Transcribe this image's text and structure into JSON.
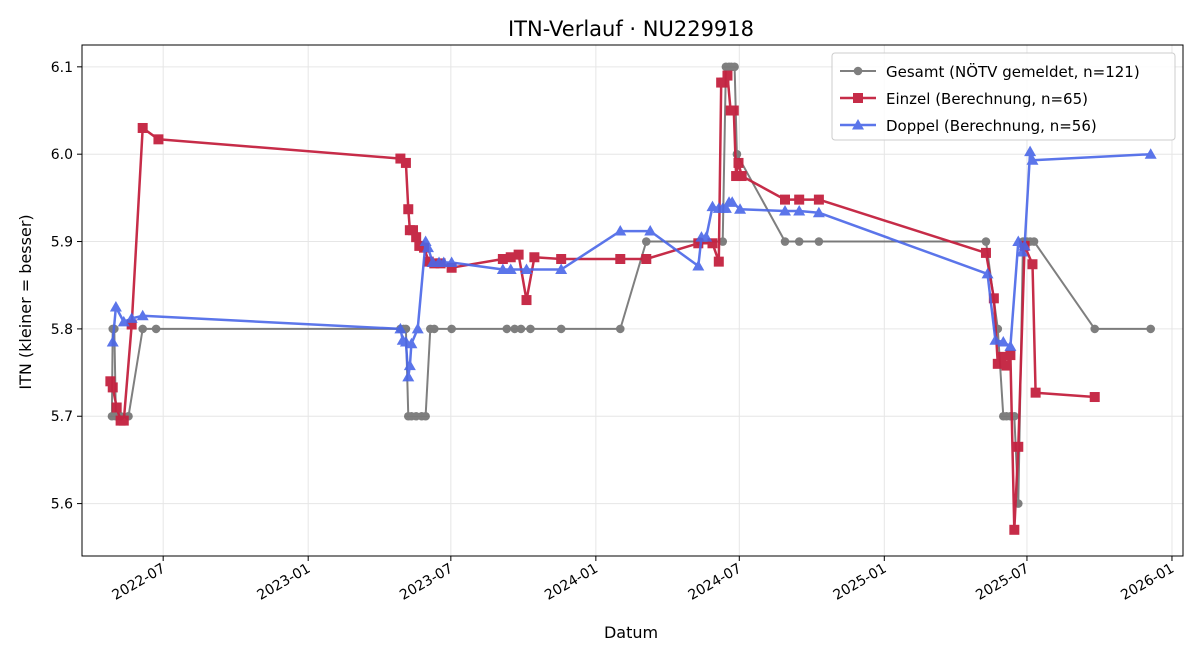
{
  "chart_data": {
    "type": "line",
    "title": "ITN-Verlauf · NU229918",
    "xlabel": "Datum",
    "ylabel": "ITN  (kleiner = besser)",
    "xlim": [
      "2022-03-20",
      "2026-01-15"
    ],
    "ylim": [
      5.54,
      6.125
    ],
    "x_ticks": [
      "2022-07",
      "2023-01",
      "2023-07",
      "2024-01",
      "2024-07",
      "2025-01",
      "2025-07",
      "2026-01"
    ],
    "y_ticks": [
      "5.6",
      "5.7",
      "5.8",
      "5.9",
      "6.0",
      "6.1"
    ],
    "grid": true,
    "legend_position": "top-right",
    "series": [
      {
        "name": "Gesamt (NÖTV gemeldet, n=121)",
        "color": "#555555",
        "marker": "circle",
        "x": [
          "2022-04-27",
          "2022-04-28",
          "2022-04-30",
          "2022-05-02",
          "2022-05-08",
          "2022-05-18",
          "2022-06-05",
          "2022-06-22",
          "2023-04-28",
          "2023-05-02",
          "2023-05-05",
          "2023-05-08",
          "2023-05-12",
          "2023-05-18",
          "2023-05-25",
          "2023-05-30",
          "2023-06-05",
          "2023-06-10",
          "2023-07-02",
          "2023-09-10",
          "2023-09-20",
          "2023-09-28",
          "2023-10-10",
          "2023-11-18",
          "2024-02-01",
          "2024-03-05",
          "2024-05-12",
          "2024-06-10",
          "2024-06-14",
          "2024-06-18",
          "2024-06-21",
          "2024-06-25",
          "2024-06-28",
          "2024-08-28",
          "2024-09-15",
          "2024-10-10",
          "2025-05-10",
          "2025-05-25",
          "2025-06-01",
          "2025-06-05",
          "2025-06-10",
          "2025-06-15",
          "2025-06-20",
          "2025-06-26",
          "2025-07-01",
          "2025-07-05",
          "2025-07-10",
          "2025-09-25",
          "2025-12-05"
        ],
        "values": [
          5.7,
          5.8,
          5.8,
          5.7,
          5.7,
          5.7,
          5.8,
          5.8,
          5.8,
          5.8,
          5.8,
          5.7,
          5.7,
          5.7,
          5.7,
          5.7,
          5.8,
          5.8,
          5.8,
          5.8,
          5.8,
          5.8,
          5.8,
          5.8,
          5.8,
          5.9,
          5.9,
          5.9,
          6.1,
          6.1,
          6.1,
          6.1,
          6.0,
          5.9,
          5.9,
          5.9,
          5.9,
          5.8,
          5.7,
          5.7,
          5.7,
          5.7,
          5.6,
          5.9,
          5.9,
          5.9,
          5.9,
          5.8,
          5.8
        ]
      },
      {
        "name": "Einzel (Berechnung, n=65)",
        "color": "#c4213f",
        "marker": "square",
        "x": [
          "2022-04-25",
          "2022-04-28",
          "2022-05-03",
          "2022-05-08",
          "2022-05-12",
          "2022-05-22",
          "2022-06-05",
          "2022-06-25",
          "2023-04-28",
          "2023-05-05",
          "2023-05-08",
          "2023-05-10",
          "2023-05-14",
          "2023-05-18",
          "2023-05-22",
          "2023-05-28",
          "2023-06-03",
          "2023-06-10",
          "2023-06-18",
          "2023-07-02",
          "2023-09-05",
          "2023-09-15",
          "2023-09-25",
          "2023-10-05",
          "2023-10-15",
          "2023-11-18",
          "2024-02-01",
          "2024-03-05",
          "2024-05-10",
          "2024-05-28",
          "2024-06-05",
          "2024-06-08",
          "2024-06-12",
          "2024-06-16",
          "2024-06-20",
          "2024-06-24",
          "2024-06-27",
          "2024-06-30",
          "2024-07-04",
          "2024-08-28",
          "2024-09-15",
          "2024-10-10",
          "2025-05-10",
          "2025-05-20",
          "2025-05-25",
          "2025-05-30",
          "2025-06-05",
          "2025-06-10",
          "2025-06-15",
          "2025-06-20",
          "2025-06-28",
          "2025-07-08",
          "2025-07-12",
          "2025-09-25"
        ],
        "values": [
          5.74,
          5.733,
          5.71,
          5.695,
          5.695,
          5.805,
          6.03,
          6.017,
          5.995,
          5.99,
          5.937,
          5.913,
          5.913,
          5.905,
          5.895,
          5.893,
          5.877,
          5.875,
          5.875,
          5.87,
          5.88,
          5.882,
          5.885,
          5.833,
          5.882,
          5.88,
          5.88,
          5.88,
          5.898,
          5.898,
          5.877,
          6.082,
          6.082,
          6.09,
          6.05,
          6.05,
          5.975,
          5.99,
          5.975,
          5.948,
          5.948,
          5.948,
          5.887,
          5.835,
          5.76,
          5.768,
          5.758,
          5.77,
          5.57,
          5.665,
          5.895,
          5.874,
          5.727,
          5.722
        ]
      },
      {
        "name": "Doppel (Berechnung, n=56)",
        "color": "#4a67e8",
        "marker": "triangle",
        "x": [
          "2022-04-28",
          "2022-05-02",
          "2022-05-12",
          "2022-05-22",
          "2022-06-05",
          "2023-04-28",
          "2023-05-01",
          "2023-05-05",
          "2023-05-08",
          "2023-05-10",
          "2023-05-12",
          "2023-05-20",
          "2023-05-30",
          "2023-06-02",
          "2023-06-08",
          "2023-06-16",
          "2023-06-22",
          "2023-07-02",
          "2023-09-05",
          "2023-09-15",
          "2023-10-05",
          "2023-11-18",
          "2024-02-01",
          "2024-03-10",
          "2024-05-10",
          "2024-05-14",
          "2024-05-20",
          "2024-05-28",
          "2024-06-05",
          "2024-06-10",
          "2024-06-14",
          "2024-06-18",
          "2024-06-22",
          "2024-07-02",
          "2024-08-28",
          "2024-09-15",
          "2024-10-10",
          "2025-05-12",
          "2025-05-22",
          "2025-06-01",
          "2025-06-10",
          "2025-06-20",
          "2025-06-25",
          "2025-06-28",
          "2025-07-05",
          "2025-07-08",
          "2025-12-05"
        ],
        "values": [
          5.785,
          5.825,
          5.808,
          5.812,
          5.815,
          5.8,
          5.787,
          5.785,
          5.745,
          5.758,
          5.783,
          5.8,
          5.9,
          5.893,
          5.876,
          5.876,
          5.876,
          5.876,
          5.868,
          5.868,
          5.868,
          5.868,
          5.912,
          5.912,
          5.872,
          5.905,
          5.905,
          5.94,
          5.938,
          5.938,
          5.938,
          5.945,
          5.945,
          5.937,
          5.935,
          5.935,
          5.933,
          5.863,
          5.787,
          5.785,
          5.78,
          5.9,
          5.888,
          5.895,
          6.003,
          5.993,
          6.0
        ]
      }
    ]
  }
}
